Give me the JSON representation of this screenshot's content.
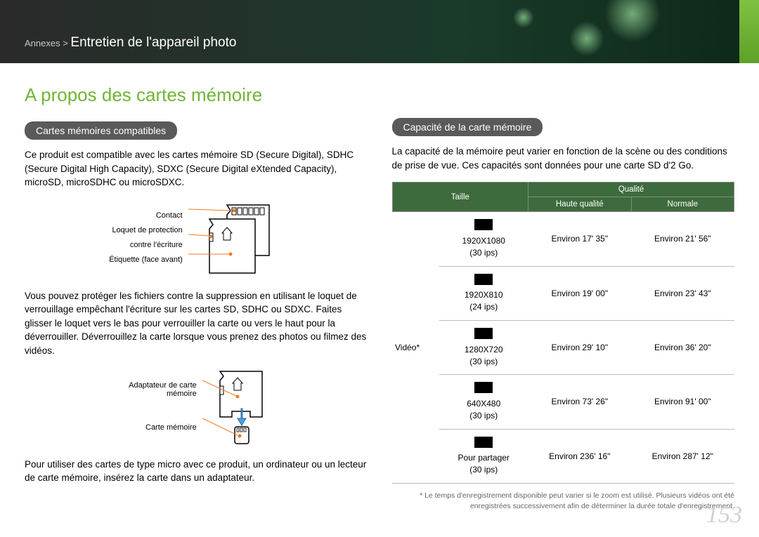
{
  "header": {
    "breadcrumb_prefix": "Annexes > ",
    "breadcrumb_main": "Entretien de l'appareil photo"
  },
  "left": {
    "title": "A propos des cartes mémoire",
    "section1_pill": "Cartes mémoires compatibles",
    "para1": "Ce produit est compatible avec les cartes mémoire SD (Secure Digital), SDHC (Secure Digital High Capacity), SDXC (Secure Digital eXtended Capacity), microSD, microSDHC ou microSDXC.",
    "diag1_labels": {
      "contact": "Contact",
      "lock": "Loquet de protection contre l'écriture",
      "label": "Étiquette (face avant)"
    },
    "para2": "Vous pouvez protéger les fichiers contre la suppression en utilisant le loquet de verrouillage empêchant l'écriture sur les cartes SD, SDHC ou SDXC. Faites glisser le loquet vers le bas pour verrouiller la carte ou vers le haut pour la déverrouiller. Déverrouillez la carte lorsque vous prenez des photos ou filmez des vidéos.",
    "diag2_labels": {
      "adapter": "Adaptateur de carte mémoire",
      "card": "Carte mémoire"
    },
    "para3": "Pour utiliser des cartes de type micro avec ce produit, un ordinateur ou un lecteur de carte mémoire, insérez la carte dans un adaptateur."
  },
  "right": {
    "section2_pill": "Capacité de la carte mémoire",
    "para1": "La capacité de la mémoire peut varier en fonction de la scène ou des conditions de prise de vue. Ces capacités sont données pour une carte SD d'2 Go.",
    "table": {
      "headers": {
        "taille": "Taille",
        "qualite": "Qualité",
        "hq": "Haute qualité",
        "normale": "Normale"
      },
      "category": "Vidéo*",
      "rows": [
        {
          "res": "1920X1080",
          "fps": "(30 ips)",
          "hq": "Environ 17' 35\"",
          "norm": "Environ 21' 56\""
        },
        {
          "res": "1920X810",
          "fps": "(24 ips)",
          "hq": "Environ 19' 00\"",
          "norm": "Environ 23' 43\""
        },
        {
          "res": "1280X720",
          "fps": "(30 ips)",
          "hq": "Environ 29' 10\"",
          "norm": "Environ 36' 20\""
        },
        {
          "res": "640X480",
          "fps": "(30 ips)",
          "hq": "Environ 73' 26\"",
          "norm": "Environ 91' 00\""
        },
        {
          "res": "Pour partager",
          "fps": "(30 ips)",
          "hq": "Environ 236' 16\"",
          "norm": "Environ 287' 12\""
        }
      ]
    },
    "footnote": "* Le temps d'enregistrement disponible peut varier si le zoom est utilisé. Plusieurs vidéos ont été enregistrées successivement afin de déterminer la durée totale d'enregistrement."
  },
  "page_number": "153"
}
